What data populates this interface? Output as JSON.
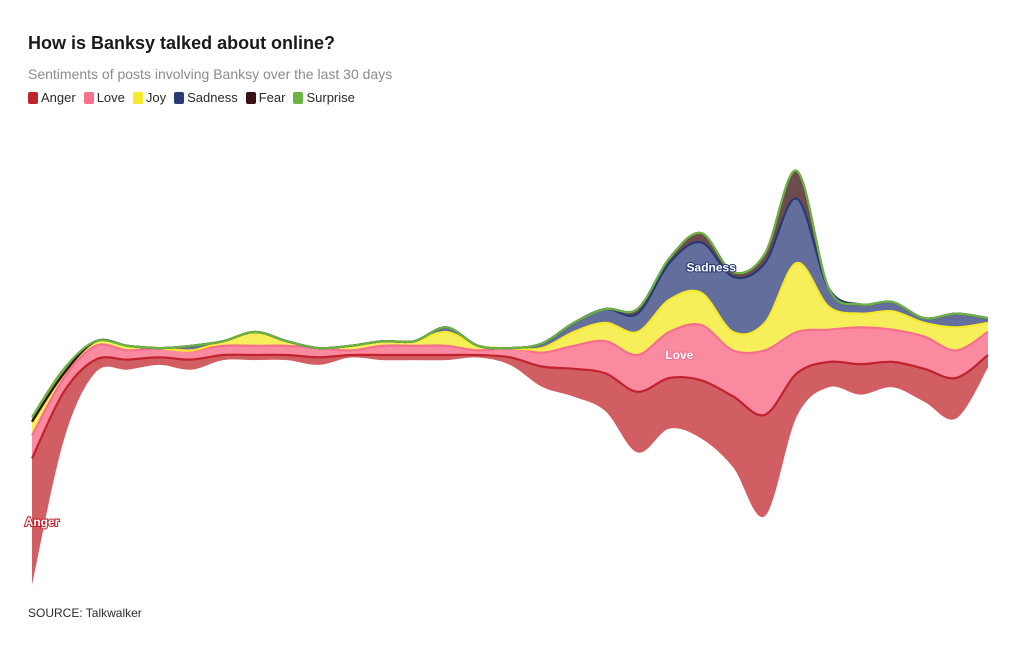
{
  "title": "How is Banksy talked about online?",
  "subtitle": "Sentiments of posts involving Banksy over the last 30 days",
  "source": "SOURCE: Talkwalker",
  "legend": [
    {
      "label": "Anger",
      "color": "#c0232e"
    },
    {
      "label": "Love",
      "color": "#f5708c"
    },
    {
      "label": "Joy",
      "color": "#f5e92a"
    },
    {
      "label": "Sadness",
      "color": "#283a73"
    },
    {
      "label": "Fear",
      "color": "#3a1014"
    },
    {
      "label": "Surprise",
      "color": "#6ab446"
    }
  ],
  "chart_data": {
    "type": "area",
    "subtype": "streamgraph",
    "title": "How is Banksy talked about online?",
    "subtitle": "Sentiments of posts involving Banksy over the last 30 days",
    "x": [
      0,
      1,
      2,
      3,
      4,
      5,
      6,
      7,
      8,
      9,
      10,
      11,
      12,
      13,
      14,
      15,
      16,
      17,
      18,
      19,
      20,
      21,
      22,
      23,
      24,
      25,
      26,
      27,
      28,
      29,
      30
    ],
    "series": [
      {
        "name": "Anger",
        "color": "#c0232e",
        "fill": "#d05e63",
        "values": [
          50,
          19,
          5,
          4,
          3,
          4,
          2,
          2,
          2,
          3,
          1,
          2,
          2,
          2,
          1,
          3,
          8,
          11,
          15,
          24,
          20,
          23,
          28,
          40,
          17,
          10,
          12,
          10,
          13,
          16,
          5
        ]
      },
      {
        "name": "Love",
        "color": "#f5708c",
        "fill": "#fa8aa0",
        "values": [
          5,
          3,
          3,
          2,
          2,
          2,
          2,
          2,
          2,
          2,
          1,
          2,
          2,
          2,
          1,
          2,
          3,
          5,
          7,
          8,
          10,
          12,
          10,
          14,
          9,
          7,
          8,
          7,
          7,
          6,
          5
        ]
      },
      {
        "name": "Joy",
        "color": "#f5e92a",
        "fill": "#f7ef5a",
        "values": [
          3,
          1,
          1,
          1,
          0,
          0,
          1,
          3,
          1,
          0,
          1,
          1,
          1,
          3,
          1,
          0,
          1,
          3,
          4,
          5,
          7,
          7,
          4,
          6,
          15,
          5,
          3,
          4,
          3,
          5,
          2
        ]
      },
      {
        "name": "Sadness",
        "color": "#283a73",
        "fill": "#636e9c",
        "values": [
          0,
          0,
          0,
          0,
          0,
          1,
          0,
          0,
          0,
          0,
          0,
          0,
          0,
          1,
          0,
          0,
          1,
          2,
          3,
          4,
          8,
          11,
          12,
          13,
          14,
          4,
          2,
          2,
          1,
          3,
          1
        ]
      },
      {
        "name": "Fear",
        "color": "#3a1014",
        "fill": "#6e4c4e",
        "values": [
          0,
          0,
          0,
          0,
          0,
          0,
          0,
          0,
          0,
          0,
          0,
          0,
          0,
          0,
          0,
          0,
          0,
          0,
          0,
          1,
          1,
          2,
          1,
          2,
          6,
          0,
          0,
          0,
          0,
          0,
          0
        ]
      },
      {
        "name": "Surprise",
        "color": "#6ab446",
        "fill": "#6ab446",
        "values": [
          1,
          1,
          0,
          0,
          0,
          0,
          0,
          0,
          0,
          0,
          0,
          0,
          0,
          0,
          0,
          0,
          0,
          0,
          0,
          0,
          0,
          0,
          0,
          0,
          0,
          0,
          0,
          0,
          0,
          0,
          0
        ]
      }
    ],
    "stream_labels": [
      "Anger",
      "Love",
      "Sadness"
    ],
    "xlabel": "",
    "ylabel": "",
    "grid": false,
    "legend_position": "top-left"
  }
}
